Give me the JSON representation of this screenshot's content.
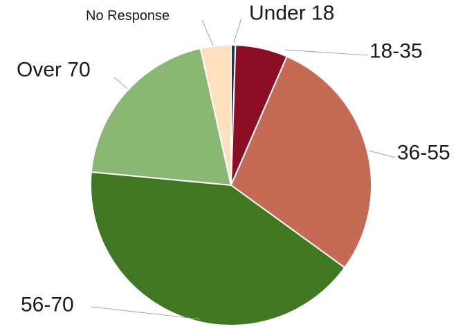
{
  "chart_data": {
    "type": "pie",
    "title": "",
    "slices": [
      {
        "label": "Under 18",
        "value": 0.5,
        "color": "#1f3864"
      },
      {
        "label": "18-35",
        "value": 6.0,
        "color": "#8b0e26"
      },
      {
        "label": "36-55",
        "value": 28.5,
        "color": "#c56a55"
      },
      {
        "label": "56-70",
        "value": 41.5,
        "color": "#3f7722"
      },
      {
        "label": "Over 70",
        "value": 20.0,
        "color": "#8ab874"
      },
      {
        "label": "No Response",
        "value": 3.5,
        "color": "#fde0bd"
      }
    ],
    "start_angle": "12 o'clock",
    "direction": "clockwise",
    "legend": "none",
    "labels_outside_with_leader_lines": true
  }
}
